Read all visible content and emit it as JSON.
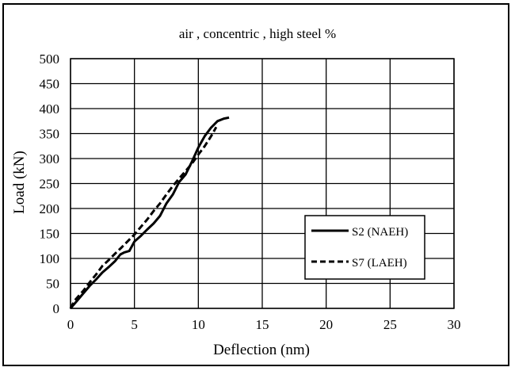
{
  "chart_data": {
    "type": "line",
    "title": "air , concentric , high steel %",
    "xlabel": "Deflection  (nm)",
    "ylabel": "Load (kN)",
    "xlim": [
      0,
      30
    ],
    "ylim": [
      0,
      500
    ],
    "xticks": [
      "0",
      "5",
      "10",
      "15",
      "20",
      "25",
      "30"
    ],
    "yticks": [
      "0",
      "50",
      "100",
      "150",
      "200",
      "250",
      "300",
      "350",
      "400",
      "450",
      "500"
    ],
    "grid": true,
    "legend_position": "right",
    "series": [
      {
        "name": "S2 (NAEH)",
        "style": "solid",
        "color": "#000000",
        "x": [
          0,
          0.5,
          1,
          1.5,
          2,
          2.5,
          3,
          3.5,
          3.9,
          4.2,
          4.6,
          5,
          5.5,
          6,
          6.5,
          7,
          7.5,
          8,
          8.5,
          9,
          9.5,
          10,
          10.5,
          11,
          11.5,
          12,
          12.4
        ],
        "y": [
          0,
          15,
          30,
          45,
          58,
          72,
          83,
          95,
          108,
          112,
          115,
          134,
          145,
          158,
          170,
          185,
          210,
          228,
          253,
          268,
          294,
          322,
          345,
          362,
          375,
          380,
          382
        ]
      },
      {
        "name": "S7 (LAEH)",
        "style": "dashed",
        "color": "#000000",
        "x": [
          0,
          0.3,
          1,
          1.5,
          2,
          2.5,
          3,
          3.5,
          4,
          4.5,
          5,
          5.5,
          6,
          6.5,
          7,
          7.5,
          8,
          8.5,
          9,
          9.5,
          10,
          10.5,
          11,
          11.4
        ],
        "y": [
          0,
          15,
          35,
          52,
          68,
          85,
          97,
          110,
          122,
          135,
          148,
          163,
          178,
          195,
          210,
          228,
          245,
          260,
          275,
          290,
          308,
          325,
          345,
          363
        ]
      }
    ]
  }
}
